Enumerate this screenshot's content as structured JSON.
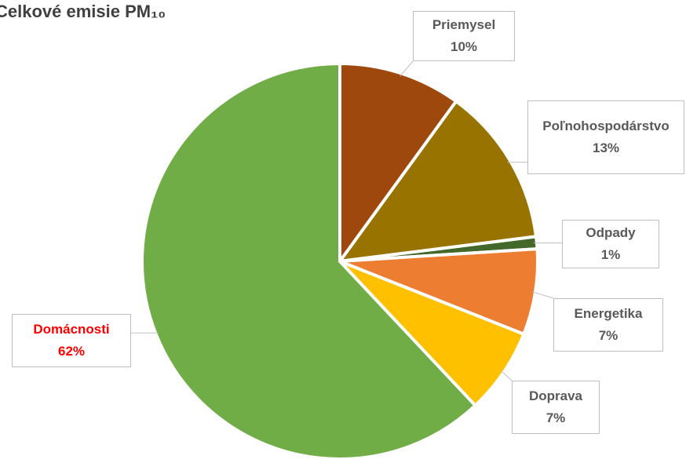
{
  "chart_data": {
    "type": "pie",
    "title": "Celkové emisie PM₁₀",
    "categories": [
      "Priemysel",
      "Poľnohospodárstvo",
      "Odpady",
      "Energetika",
      "Doprava",
      "Domácnosti"
    ],
    "values": [
      10,
      13,
      1,
      7,
      7,
      62
    ],
    "value_labels": [
      "10%",
      "13%",
      "1%",
      "7%",
      "7%",
      "62%"
    ],
    "colors": [
      "#9e480e",
      "#997300",
      "#43682b",
      "#ed7d31",
      "#ffc000",
      "#70ad47"
    ],
    "label_colors": [
      "#595959",
      "#595959",
      "#595959",
      "#595959",
      "#595959",
      "#ff0000"
    ]
  }
}
